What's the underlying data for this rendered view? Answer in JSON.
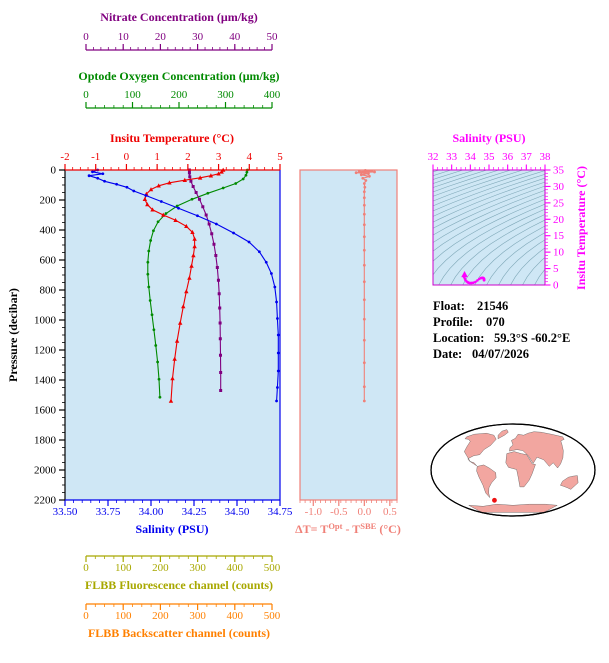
{
  "info": {
    "lines": [
      {
        "label": "Float:",
        "value": "21546"
      },
      {
        "label": "Profile:",
        "value": "070"
      },
      {
        "label": "Location:",
        "value": "59.3°S -60.2°E"
      },
      {
        "label": "Date:",
        "value": "04/07/2026"
      }
    ]
  },
  "delta_label": {
    "pre": "ΔT= T",
    "sup1": "Opt",
    "mid": " - T",
    "sup2": "SBE",
    "post": " (°C)"
  },
  "map": {
    "marker": {
      "lon": -60.2,
      "lat": -59.3
    },
    "land_color": "#f2a6a0",
    "marker_color": "#ee1111"
  },
  "chart_data": [
    {
      "id": "pressure-profiles",
      "type": "line",
      "plot_bg": "#cfe7f5",
      "y_axis": {
        "label": "Pressure (decibar)",
        "range": [
          0,
          2200
        ],
        "ticks": [
          0,
          200,
          400,
          600,
          800,
          1000,
          1200,
          1400,
          1600,
          1800,
          2000,
          2200
        ],
        "color": "#000000"
      },
      "x_axes": [
        {
          "id": "nitrate",
          "label": "Nitrate Concentration (μm/kg)",
          "range": [
            0,
            50
          ],
          "ticks": [
            0,
            10,
            20,
            30,
            40,
            50
          ],
          "minor_step": 2,
          "color": "#800080"
        },
        {
          "id": "oxygen",
          "label": "Optode Oxygen Concentration (μm/kg)",
          "range": [
            0,
            400
          ],
          "ticks": [
            0,
            100,
            200,
            300,
            400
          ],
          "minor_step": 20,
          "color": "#008a00"
        },
        {
          "id": "temperature",
          "label": "Insitu Temperature (°C)",
          "range": [
            -2,
            5
          ],
          "ticks": [
            -2,
            -1,
            0,
            1,
            2,
            3,
            4,
            5
          ],
          "minor_step": 0.25,
          "color": "#ee0000"
        },
        {
          "id": "salinity",
          "label": "Salinity (PSU)",
          "range": [
            33.5,
            34.75
          ],
          "ticks": [
            "33.50",
            "33.75",
            "34.00",
            "34.25",
            "34.50",
            "34.75"
          ],
          "minor_step": 0.05,
          "color": "#0000ee"
        },
        {
          "id": "fluorescence",
          "label": "FLBB Fluorescence channel (counts)",
          "range": [
            0,
            500
          ],
          "ticks": [
            0,
            100,
            200,
            300,
            400,
            500
          ],
          "minor_step": 25,
          "color": "#a8a800"
        },
        {
          "id": "backscatter",
          "label": "FLBB Backscatter channel (counts)",
          "range": [
            0,
            500
          ],
          "ticks": [
            0,
            100,
            200,
            300,
            400,
            500
          ],
          "minor_step": 25,
          "color": "#ff8000"
        }
      ],
      "series": [
        {
          "name": "oxygen",
          "axis": "oxygen",
          "color": "#008a00",
          "marker": "circle",
          "points": [
            [
              347,
              0
            ],
            [
              346,
              15
            ],
            [
              344,
              35
            ],
            [
              338,
              60
            ],
            [
              322,
              90
            ],
            [
              295,
              120
            ],
            [
              262,
              155
            ],
            [
              228,
              195
            ],
            [
              196,
              240
            ],
            [
              172,
              290
            ],
            [
              155,
              345
            ],
            [
              145,
              405
            ],
            [
              139,
              470
            ],
            [
              135,
              540
            ],
            [
              133,
              615
            ],
            [
              133,
              695
            ],
            [
              135,
              780
            ],
            [
              138,
              870
            ],
            [
              142,
              965
            ],
            [
              146,
              1065
            ],
            [
              150,
              1170
            ],
            [
              154,
              1280
            ],
            [
              157,
              1395
            ],
            [
              159,
              1515
            ]
          ]
        },
        {
          "name": "nitrate",
          "axis": "nitrate",
          "color": "#800080",
          "marker": "square",
          "points": [
            [
              27.8,
              0
            ],
            [
              27.8,
              20
            ],
            [
              27.9,
              45
            ],
            [
              28.2,
              75
            ],
            [
              28.8,
              110
            ],
            [
              29.6,
              150
            ],
            [
              30.5,
              195
            ],
            [
              31.4,
              245
            ],
            [
              32.3,
              300
            ],
            [
              33.1,
              360
            ],
            [
              33.8,
              425
            ],
            [
              34.4,
              495
            ],
            [
              34.9,
              570
            ],
            [
              35.3,
              650
            ],
            [
              35.6,
              735
            ],
            [
              35.8,
              825
            ],
            [
              35.95,
              920
            ],
            [
              36.05,
              1020
            ],
            [
              36.1,
              1125
            ],
            [
              36.15,
              1235
            ],
            [
              36.2,
              1350
            ],
            [
              36.2,
              1470
            ]
          ]
        },
        {
          "name": "temperature",
          "axis": "temperature",
          "color": "#ee0000",
          "marker": "triangle",
          "points": [
            [
              3.15,
              0
            ],
            [
              3.1,
              12
            ],
            [
              3.0,
              25
            ],
            [
              2.75,
              38
            ],
            [
              2.4,
              52
            ],
            [
              1.9,
              68
            ],
            [
              1.4,
              85
            ],
            [
              1.05,
              105
            ],
            [
              0.8,
              130
            ],
            [
              0.65,
              160
            ],
            [
              0.6,
              195
            ],
            [
              0.68,
              230
            ],
            [
              0.85,
              265
            ],
            [
              1.2,
              300
            ],
            [
              1.6,
              335
            ],
            [
              1.95,
              375
            ],
            [
              2.15,
              415
            ],
            [
              2.22,
              460
            ],
            [
              2.22,
              510
            ],
            [
              2.18,
              570
            ],
            [
              2.12,
              640
            ],
            [
              2.05,
              720
            ],
            [
              1.95,
              810
            ],
            [
              1.85,
              910
            ],
            [
              1.75,
              1020
            ],
            [
              1.65,
              1140
            ],
            [
              1.57,
              1260
            ],
            [
              1.5,
              1390
            ],
            [
              1.45,
              1540
            ]
          ]
        },
        {
          "name": "salinity",
          "axis": "salinity",
          "color": "#0000ee",
          "marker": "circle",
          "points": [
            [
              33.69,
              0
            ],
            [
              33.66,
              12
            ],
            [
              33.72,
              25
            ],
            [
              33.64,
              38
            ],
            [
              33.69,
              55
            ],
            [
              33.73,
              75
            ],
            [
              33.8,
              95
            ],
            [
              33.86,
              115
            ],
            [
              33.9,
              140
            ],
            [
              33.97,
              170
            ],
            [
              34.06,
              210
            ],
            [
              34.16,
              255
            ],
            [
              34.27,
              305
            ],
            [
              34.38,
              360
            ],
            [
              34.48,
              420
            ],
            [
              34.57,
              480
            ],
            [
              34.63,
              545
            ],
            [
              34.67,
              615
            ],
            [
              34.7,
              690
            ],
            [
              34.72,
              780
            ],
            [
              34.73,
              880
            ],
            [
              34.735,
              990
            ],
            [
              34.74,
              1100
            ],
            [
              34.74,
              1220
            ],
            [
              34.74,
              1340
            ],
            [
              34.735,
              1450
            ],
            [
              34.73,
              1540
            ]
          ]
        }
      ]
    },
    {
      "id": "temperature-difference",
      "type": "line",
      "plot_bg": "#cfe7f5",
      "x_axis": {
        "range": [
          -1.26,
          0.64
        ],
        "ticks": [
          "-1.0",
          "-0.5",
          "0.0",
          "0.5"
        ],
        "minor_step": 0.1,
        "color": "#f08078"
      },
      "y_axis": {
        "range": [
          0,
          2200
        ]
      },
      "series": [
        {
          "name": "delta-t",
          "color": "#f08078",
          "marker": "circle",
          "points": [
            [
              0.02,
              3
            ],
            [
              0.15,
              6
            ],
            [
              -0.1,
              9
            ],
            [
              0.2,
              13
            ],
            [
              -0.16,
              18
            ],
            [
              0.08,
              24
            ],
            [
              -0.06,
              32
            ],
            [
              0.1,
              42
            ],
            [
              -0.03,
              55
            ],
            [
              0.03,
              70
            ],
            [
              0,
              90
            ],
            [
              0.01,
              115
            ],
            [
              0,
              145
            ],
            [
              0,
              185
            ],
            [
              0,
              235
            ],
            [
              0,
              295
            ],
            [
              0,
              365
            ],
            [
              0,
              445
            ],
            [
              0,
              535
            ],
            [
              0,
              635
            ],
            [
              0,
              745
            ],
            [
              0,
              865
            ],
            [
              0,
              995
            ],
            [
              0,
              1135
            ],
            [
              0,
              1285
            ],
            [
              0,
              1445
            ],
            [
              0,
              1540
            ]
          ]
        }
      ]
    },
    {
      "id": "ts-diagram",
      "type": "scatter",
      "plot_bg": "#cfe7f5",
      "x_axis": {
        "label": "Salinity (PSU)",
        "range": [
          32,
          38
        ],
        "ticks": [
          32,
          33,
          34,
          35,
          36,
          37,
          38
        ],
        "minor_step": 0.25,
        "color": "#ff00ff"
      },
      "y_axis": {
        "label": "Insitu Temperature (°C)",
        "range": [
          0,
          35
        ],
        "ticks": [
          0,
          5,
          10,
          15,
          20,
          25,
          30,
          35
        ],
        "minor_step": 1,
        "color": "#ff00ff"
      },
      "point_color": "#ff00ff",
      "points": [
        [
          33.69,
          3.15
        ],
        [
          33.67,
          3.05
        ],
        [
          33.7,
          2.8
        ],
        [
          33.66,
          2.5
        ],
        [
          33.7,
          2.0
        ],
        [
          33.74,
          1.5
        ],
        [
          33.8,
          1.1
        ],
        [
          33.86,
          0.85
        ],
        [
          33.9,
          0.7
        ],
        [
          33.97,
          0.62
        ],
        [
          34.06,
          0.62
        ],
        [
          34.16,
          0.7
        ],
        [
          34.27,
          0.95
        ],
        [
          34.38,
          1.4
        ],
        [
          34.48,
          1.85
        ],
        [
          34.57,
          2.1
        ],
        [
          34.63,
          2.2
        ],
        [
          34.67,
          2.2
        ],
        [
          34.7,
          2.1
        ],
        [
          34.72,
          2.0
        ],
        [
          34.73,
          1.9
        ],
        [
          34.735,
          1.78
        ],
        [
          34.74,
          1.68
        ],
        [
          34.74,
          1.58
        ],
        [
          34.74,
          1.5
        ],
        [
          34.735,
          1.45
        ]
      ],
      "surface_marker": [
        33.69,
        3.15
      ],
      "contours": {
        "levels_from": 17,
        "levels_to": 30,
        "step": 0.5,
        "color": "#7fa8b8"
      }
    }
  ]
}
